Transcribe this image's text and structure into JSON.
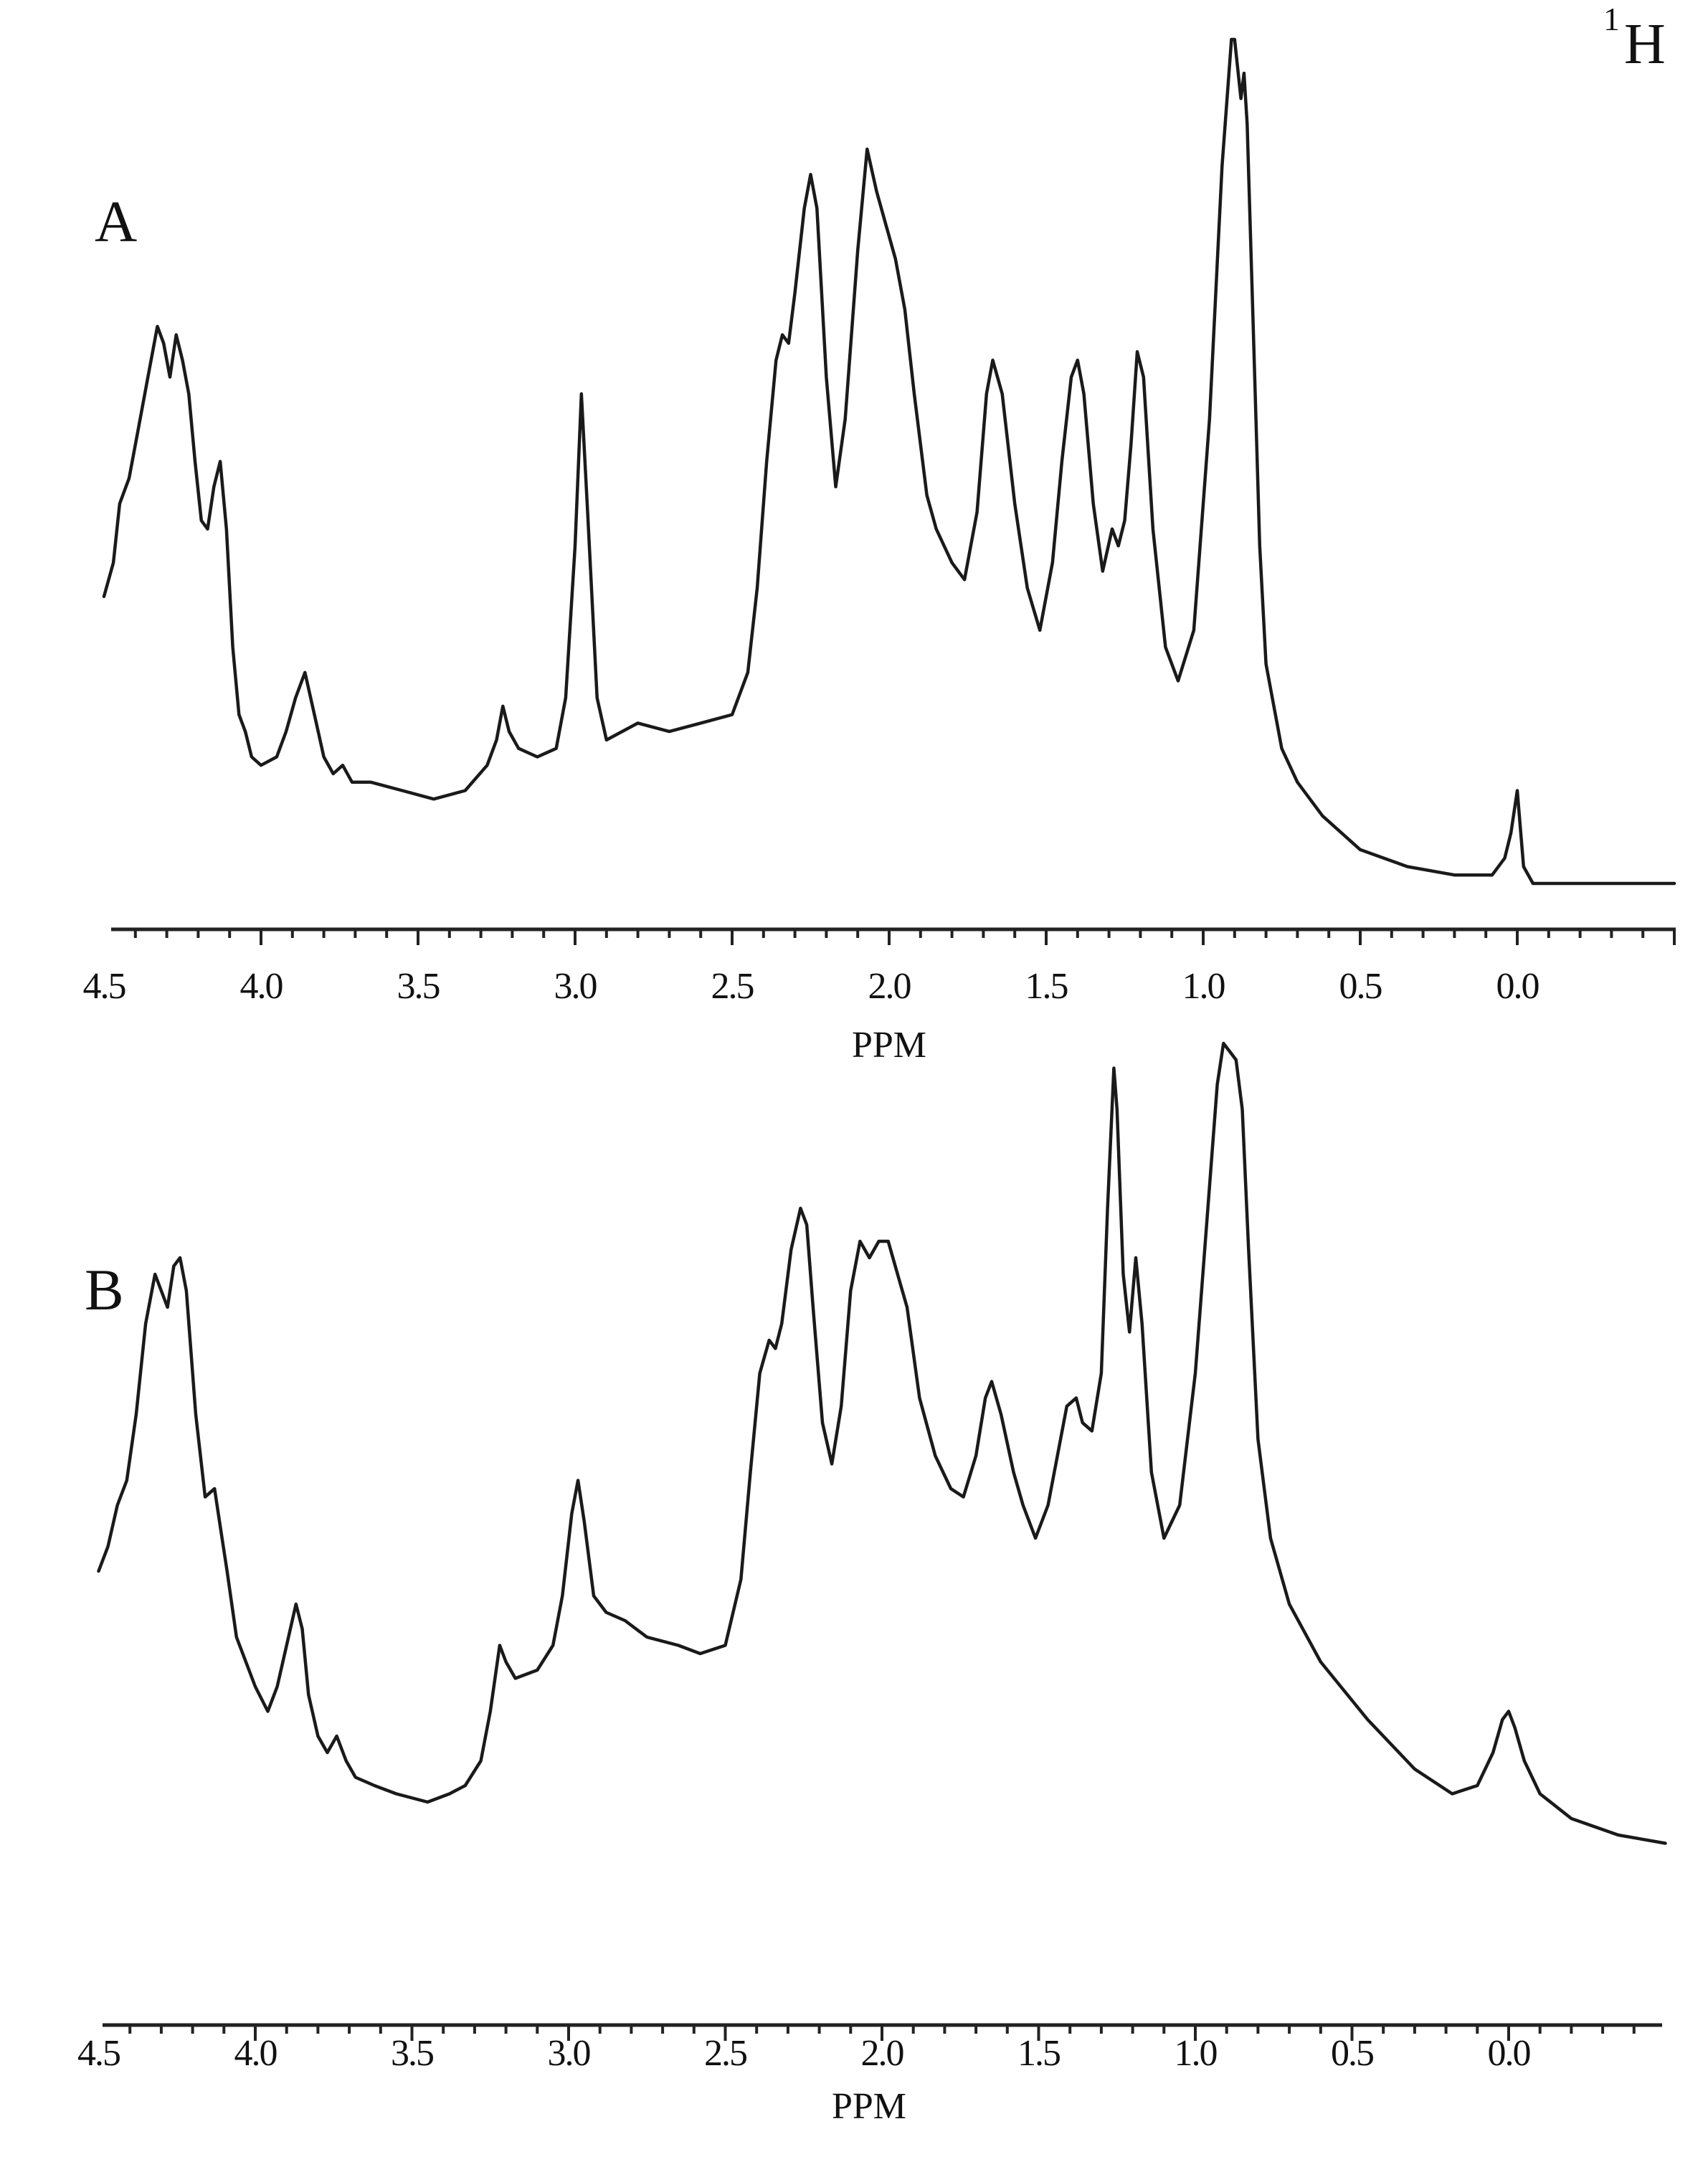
{
  "figure": {
    "nucleus_mass": "1",
    "nucleus_symbol": "H",
    "panels": [
      {
        "label": "A",
        "xlabel": "PPM"
      },
      {
        "label": "B",
        "xlabel": "PPM"
      }
    ],
    "ticks": [
      "4.5",
      "4.0",
      "3.5",
      "3.0",
      "2.5",
      "2.0",
      "1.5",
      "1.0",
      "0.5",
      "0.0"
    ]
  },
  "chart_data": [
    {
      "type": "line",
      "title": "A",
      "subtitle": "1H NMR spectrum",
      "xlabel": "PPM",
      "ylabel": "",
      "xlim": [
        4.5,
        -0.5
      ],
      "x_reversed": true,
      "grid": false,
      "legend": null,
      "tick_labels": [
        "4.5",
        "4.0",
        "3.5",
        "3.0",
        "2.5",
        "2.0",
        "1.5",
        "1.0",
        "0.5",
        "0.0"
      ],
      "peaks_ppm": [
        4.32,
        4.26,
        4.14,
        3.85,
        3.73,
        3.22,
        2.98,
        2.34,
        2.25,
        2.07,
        1.67,
        1.41,
        1.27,
        1.2,
        0.9,
        0.87,
        0.0
      ],
      "series": [
        {
          "name": "A",
          "x": [
            4.5,
            4.47,
            4.45,
            4.42,
            4.39,
            4.36,
            4.33,
            4.31,
            4.29,
            4.27,
            4.25,
            4.23,
            4.21,
            4.19,
            4.17,
            4.15,
            4.13,
            4.11,
            4.09,
            4.07,
            4.05,
            4.03,
            4.0,
            3.95,
            3.92,
            3.89,
            3.86,
            3.83,
            3.8,
            3.77,
            3.74,
            3.71,
            3.65,
            3.55,
            3.45,
            3.35,
            3.28,
            3.25,
            3.23,
            3.21,
            3.18,
            3.12,
            3.06,
            3.03,
            3.0,
            2.98,
            2.96,
            2.93,
            2.9,
            2.85,
            2.8,
            2.7,
            2.6,
            2.5,
            2.45,
            2.42,
            2.39,
            2.36,
            2.34,
            2.32,
            2.3,
            2.27,
            2.25,
            2.23,
            2.2,
            2.17,
            2.14,
            2.1,
            2.07,
            2.04,
            2.01,
            1.98,
            1.95,
            1.92,
            1.88,
            1.85,
            1.8,
            1.76,
            1.72,
            1.69,
            1.67,
            1.64,
            1.6,
            1.56,
            1.52,
            1.48,
            1.45,
            1.42,
            1.4,
            1.38,
            1.35,
            1.32,
            1.29,
            1.27,
            1.25,
            1.23,
            1.21,
            1.19,
            1.16,
            1.12,
            1.08,
            1.03,
            0.98,
            0.94,
            0.91,
            0.9,
            0.88,
            0.87,
            0.86,
            0.84,
            0.82,
            0.8,
            0.75,
            0.7,
            0.62,
            0.5,
            0.35,
            0.2,
            0.08,
            0.04,
            0.02,
            0.0,
            -0.02,
            -0.05,
            -0.15,
            -0.3,
            -0.5
          ],
          "y": [
            34,
            38,
            45,
            48,
            54,
            60,
            66,
            64,
            60,
            65,
            62,
            58,
            50,
            43,
            42,
            47,
            50,
            42,
            28,
            20,
            18,
            15,
            14,
            15,
            18,
            22,
            25,
            20,
            15,
            13,
            14,
            12,
            12,
            11,
            10,
            11,
            14,
            17,
            21,
            18,
            16,
            15,
            16,
            22,
            40,
            58,
            44,
            22,
            17,
            18,
            19,
            18,
            19,
            20,
            25,
            35,
            50,
            62,
            65,
            64,
            70,
            80,
            84,
            80,
            60,
            47,
            55,
            75,
            87,
            82,
            78,
            74,
            68,
            58,
            46,
            42,
            38,
            36,
            44,
            58,
            62,
            58,
            45,
            35,
            30,
            38,
            50,
            60,
            62,
            58,
            45,
            37,
            42,
            40,
            43,
            52,
            63,
            60,
            42,
            28,
            24,
            30,
            55,
            85,
            100,
            100,
            93,
            96,
            90,
            65,
            40,
            26,
            16,
            12,
            8,
            4,
            2,
            1,
            1,
            3,
            6,
            11,
            2,
            0,
            0,
            0,
            0
          ]
        }
      ]
    },
    {
      "type": "line",
      "title": "B",
      "subtitle": "1H NMR spectrum",
      "xlabel": "PPM",
      "ylabel": "",
      "xlim": [
        4.5,
        -0.5
      ],
      "x_reversed": true,
      "grid": false,
      "legend": null,
      "tick_labels": [
        "4.5",
        "4.0",
        "3.5",
        "3.0",
        "2.5",
        "2.0",
        "1.5",
        "1.0",
        "0.5",
        "0.0"
      ],
      "peaks_ppm": [
        4.31,
        4.25,
        4.12,
        3.85,
        3.72,
        3.21,
        2.97,
        2.34,
        2.25,
        2.07,
        1.98,
        1.65,
        1.38,
        1.26,
        1.2,
        0.9,
        0.87,
        0.0
      ],
      "series": [
        {
          "name": "B",
          "x": [
            4.5,
            4.47,
            4.44,
            4.41,
            4.38,
            4.35,
            4.32,
            4.3,
            4.28,
            4.26,
            4.24,
            4.22,
            4.19,
            4.16,
            4.13,
            4.11,
            4.09,
            4.06,
            4.03,
            4.0,
            3.96,
            3.93,
            3.9,
            3.87,
            3.85,
            3.83,
            3.8,
            3.77,
            3.74,
            3.71,
            3.68,
            3.62,
            3.55,
            3.45,
            3.38,
            3.33,
            3.28,
            3.25,
            3.22,
            3.2,
            3.17,
            3.1,
            3.05,
            3.02,
            2.99,
            2.97,
            2.95,
            2.92,
            2.88,
            2.82,
            2.75,
            2.65,
            2.58,
            2.5,
            2.45,
            2.42,
            2.39,
            2.36,
            2.34,
            2.32,
            2.29,
            2.26,
            2.24,
            2.22,
            2.19,
            2.16,
            2.13,
            2.1,
            2.07,
            2.04,
            2.01,
            1.98,
            1.95,
            1.92,
            1.88,
            1.83,
            1.78,
            1.74,
            1.7,
            1.67,
            1.65,
            1.62,
            1.58,
            1.55,
            1.51,
            1.47,
            1.44,
            1.41,
            1.38,
            1.36,
            1.33,
            1.3,
            1.28,
            1.26,
            1.25,
            1.23,
            1.21,
            1.19,
            1.17,
            1.14,
            1.1,
            1.05,
            1.0,
            0.96,
            0.93,
            0.91,
            0.89,
            0.87,
            0.85,
            0.83,
            0.8,
            0.76,
            0.7,
            0.6,
            0.45,
            0.3,
            0.18,
            0.1,
            0.05,
            0.02,
            0.0,
            -0.02,
            -0.05,
            -0.1,
            -0.2,
            -0.35,
            -0.5
          ],
          "y": [
            36,
            39,
            44,
            47,
            55,
            66,
            72,
            70,
            68,
            73,
            74,
            70,
            55,
            45,
            46,
            41,
            36,
            28,
            25,
            22,
            19,
            22,
            27,
            32,
            29,
            21,
            16,
            14,
            16,
            13,
            11,
            10,
            9,
            8,
            9,
            10,
            13,
            19,
            27,
            25,
            23,
            24,
            27,
            33,
            43,
            47,
            42,
            33,
            31,
            30,
            28,
            27,
            26,
            27,
            35,
            48,
            60,
            64,
            63,
            66,
            75,
            80,
            78,
            68,
            54,
            49,
            56,
            70,
            76,
            74,
            76,
            76,
            72,
            68,
            57,
            50,
            46,
            45,
            50,
            57,
            59,
            55,
            48,
            44,
            40,
            44,
            50,
            56,
            57,
            54,
            53,
            60,
            80,
            97,
            92,
            72,
            65,
            74,
            66,
            48,
            40,
            44,
            60,
            80,
            95,
            100,
            99,
            98,
            92,
            75,
            52,
            40,
            32,
            25,
            18,
            12,
            9,
            10,
            14,
            18,
            19,
            17,
            13,
            9,
            6,
            4,
            3
          ]
        }
      ]
    }
  ]
}
